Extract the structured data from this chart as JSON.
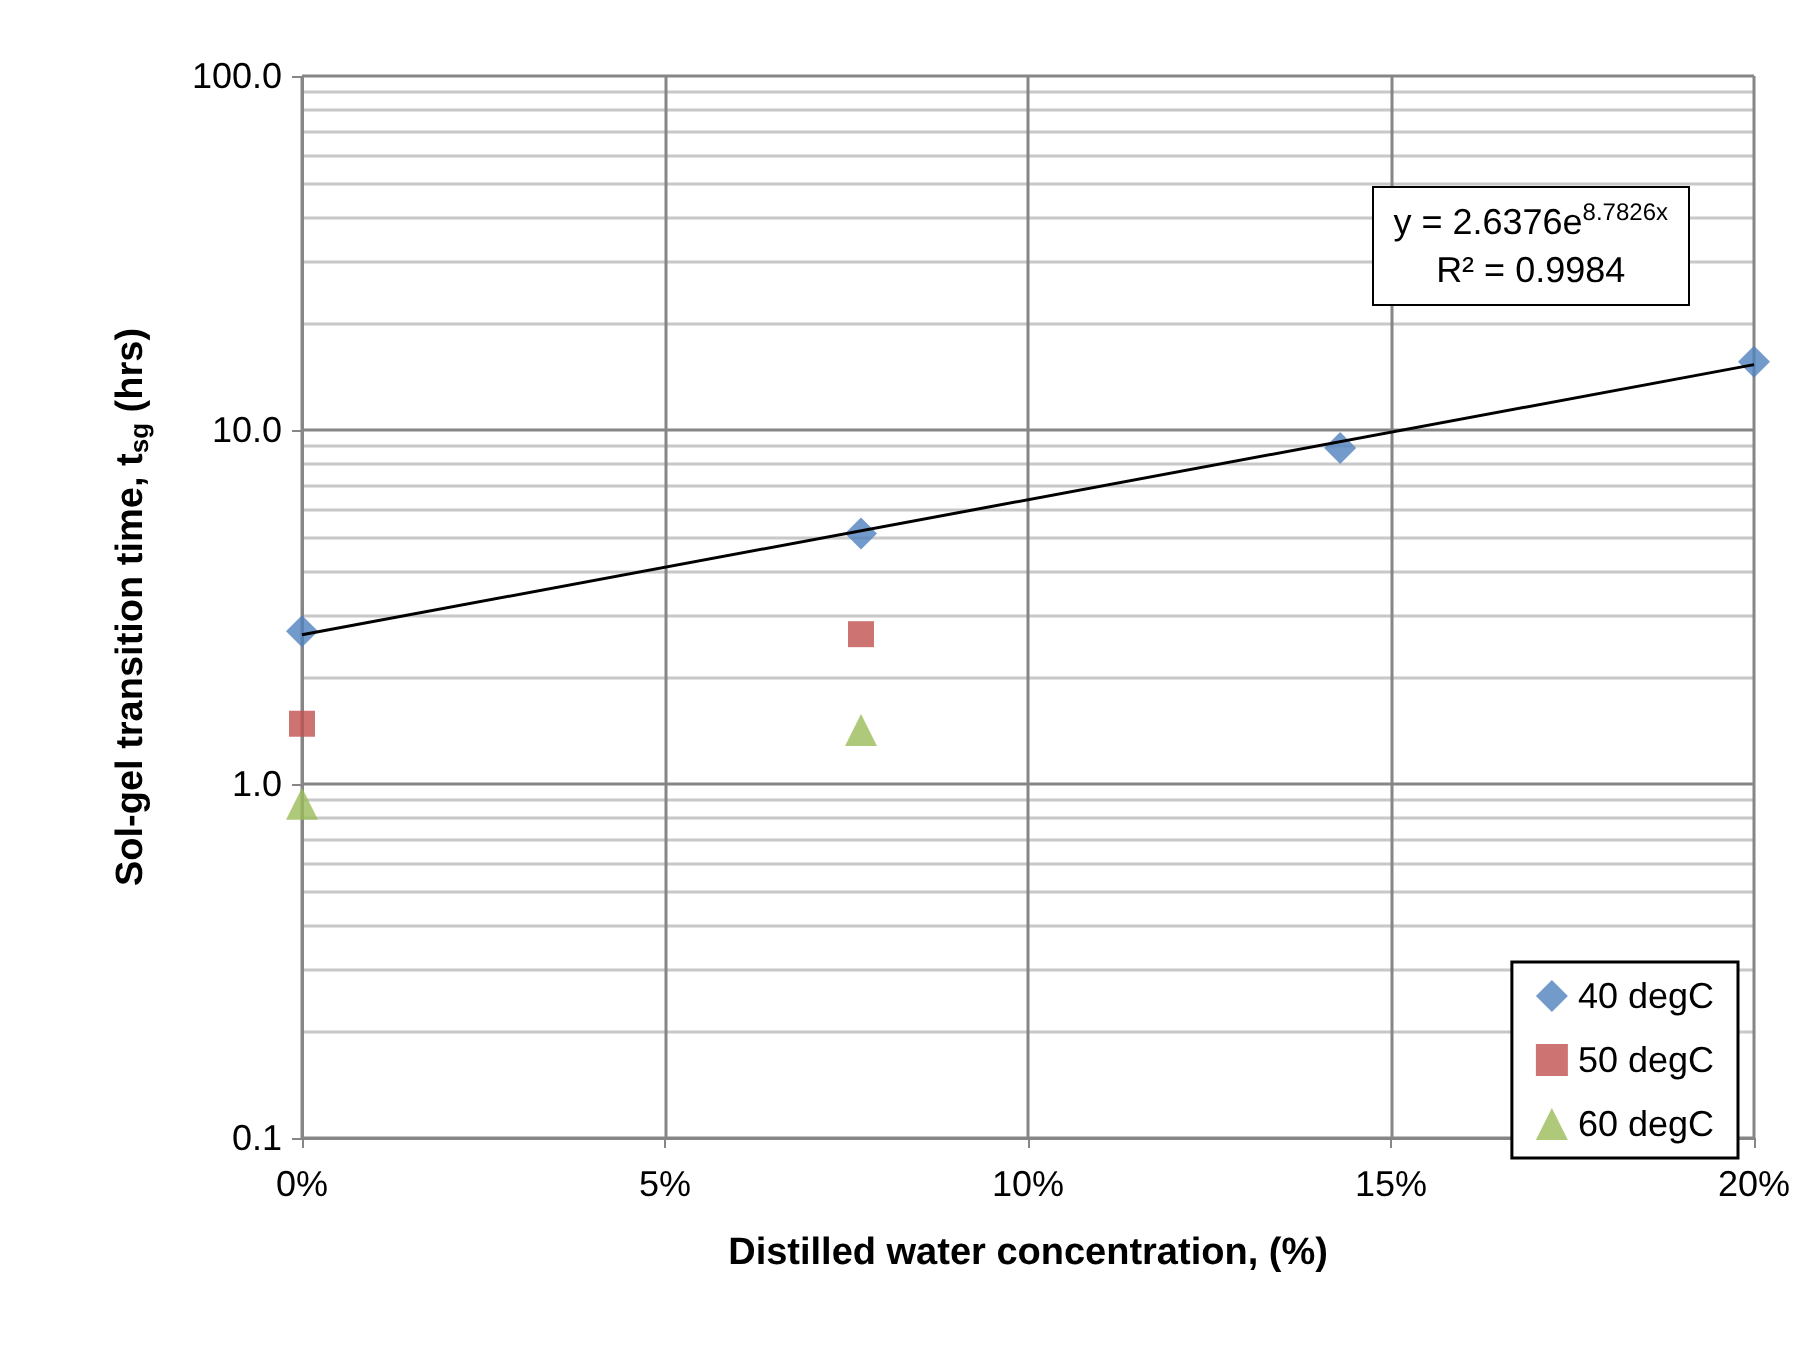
{
  "chart_data": {
    "type": "scatter",
    "xlabel": "Distilled water concentration, (%)",
    "ylabel": "Sol-gel transition time, t$_{sg}$ (hrs)",
    "annotations": [
      "y = 2.6376e$^{8.7826x}$",
      "R² = 0.9984"
    ],
    "series": [
      {
        "name": "40 degC",
        "color": "#4f81bd",
        "marker": "diamond",
        "x": [
          0,
          7.7,
          14.3,
          20
        ],
        "values": [
          2.7,
          5.1,
          8.9,
          15.6
        ]
      },
      {
        "name": "50 degC",
        "color": "#c0504d",
        "marker": "square",
        "x": [
          0,
          7.7
        ],
        "values": [
          1.48,
          2.65
        ]
      },
      {
        "name": "60 degC",
        "color": "#9bbb59",
        "marker": "triangle",
        "x": [
          0,
          7.7
        ],
        "values": [
          0.88,
          1.42
        ]
      },
      {
        "type": "line",
        "color": "#000000",
        "marker": "none",
        "x": [
          0,
          20
        ],
        "values": [
          2.64,
          15.3
        ]
      }
    ],
    "xlim": [
      0,
      20
    ],
    "xticks": [
      {
        "value": 0,
        "label": "0%"
      },
      {
        "value": 5,
        "label": "5%"
      },
      {
        "value": 10,
        "label": "10%"
      },
      {
        "value": 15,
        "label": "15%"
      },
      {
        "value": 20,
        "label": "20%"
      }
    ],
    "ylim": [
      0.1,
      100
    ],
    "yticks": [
      {
        "value": 0.1,
        "label": "0.1"
      },
      {
        "value": 1,
        "label": "1.0"
      },
      {
        "value": 10,
        "label": "10.0"
      },
      {
        "value": 100,
        "label": "100.0"
      }
    ],
    "log": "y",
    "grid": true,
    "legend": "bottom right"
  }
}
